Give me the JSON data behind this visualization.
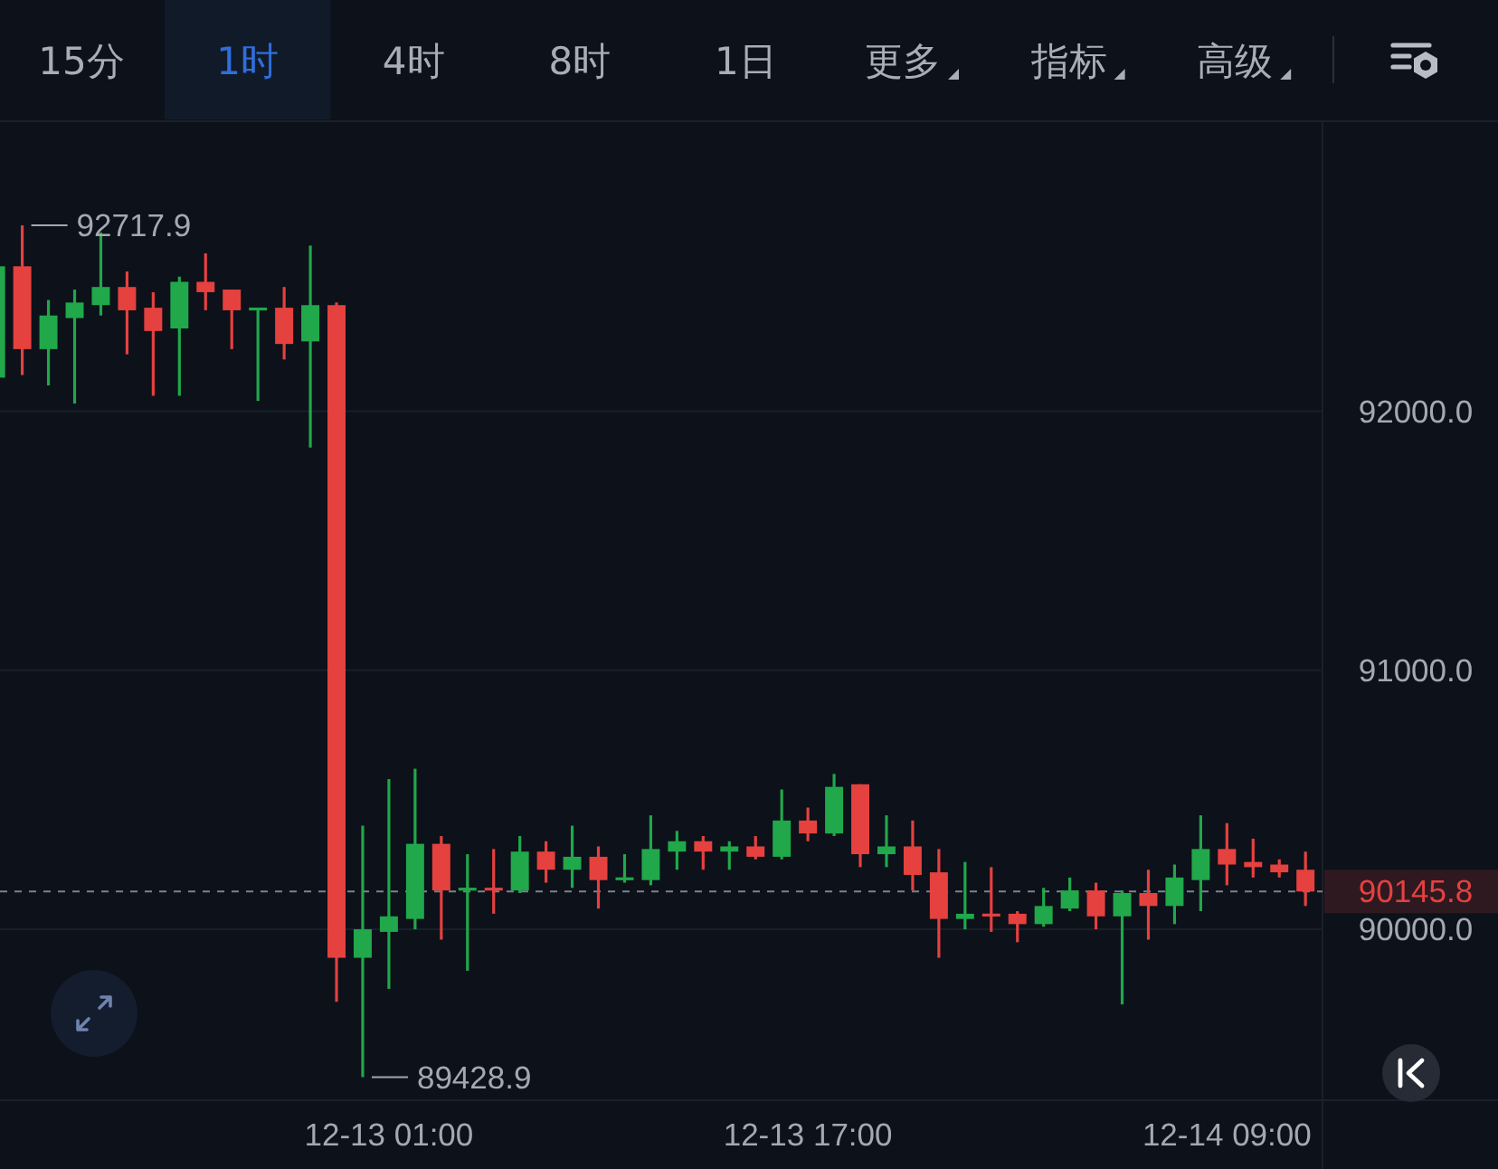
{
  "chart_data": {
    "type": "candlestick",
    "categories": [
      null,
      null,
      null,
      null,
      null,
      null,
      null,
      null,
      null,
      null,
      null,
      null,
      null,
      null,
      null,
      "12-13 01:00",
      null,
      null,
      null,
      null,
      null,
      null,
      null,
      null,
      null,
      null,
      null,
      null,
      null,
      null,
      null,
      "12-13 17:00",
      null,
      null,
      null,
      null,
      null,
      null,
      null,
      null,
      null,
      null,
      null,
      null,
      null,
      null,
      null,
      "12-14 09:00",
      null,
      null,
      null
    ],
    "ohlc": [
      [
        92130,
        92570,
        92120,
        92560
      ],
      [
        92560,
        92717.9,
        92140,
        92240
      ],
      [
        92240,
        92430,
        92100,
        92370
      ],
      [
        92360,
        92470,
        92030,
        92420
      ],
      [
        92410,
        92690,
        92370,
        92480
      ],
      [
        92480,
        92540,
        92220,
        92390
      ],
      [
        92400,
        92460,
        92060,
        92310
      ],
      [
        92320,
        92520,
        92060,
        92500
      ],
      [
        92500,
        92610,
        92390,
        92460
      ],
      [
        92470,
        92470,
        92240,
        92390
      ],
      [
        92390,
        92400,
        92040,
        92400
      ],
      [
        92400,
        92480,
        92200,
        92260
      ],
      [
        92270,
        92640,
        91860,
        92410
      ],
      [
        92410,
        92420,
        89720,
        89890
      ],
      [
        89890,
        90400,
        89428.9,
        90000
      ],
      [
        89990,
        90580,
        89770,
        90050
      ],
      [
        90040,
        90620,
        90000,
        90330
      ],
      [
        90330,
        90360,
        89960,
        90150
      ],
      [
        90150,
        90290,
        89840,
        90160
      ],
      [
        90160,
        90310,
        90060,
        90150
      ],
      [
        90150,
        90360,
        90140,
        90300
      ],
      [
        90300,
        90340,
        90180,
        90230
      ],
      [
        90230,
        90400,
        90160,
        90280
      ],
      [
        90280,
        90320,
        90080,
        90190
      ],
      [
        90190,
        90290,
        90180,
        90200
      ],
      [
        90190,
        90440,
        90170,
        90310
      ],
      [
        90300,
        90380,
        90230,
        90340
      ],
      [
        90340,
        90360,
        90230,
        90300
      ],
      [
        90300,
        90340,
        90230,
        90320
      ],
      [
        90320,
        90360,
        90270,
        90280
      ],
      [
        90280,
        90540,
        90270,
        90420
      ],
      [
        90420,
        90470,
        90340,
        90370
      ],
      [
        90370,
        90600,
        90360,
        90550
      ],
      [
        90560,
        90560,
        90240,
        90290
      ],
      [
        90290,
        90440,
        90240,
        90320
      ],
      [
        90320,
        90420,
        90150,
        90210
      ],
      [
        90220,
        90310,
        89890,
        90040
      ],
      [
        90040,
        90260,
        90000,
        90060
      ],
      [
        90060,
        90240,
        89990,
        90050
      ],
      [
        90060,
        90070,
        89950,
        90020
      ],
      [
        90020,
        90160,
        90010,
        90090
      ],
      [
        90080,
        90200,
        90070,
        90150
      ],
      [
        90150,
        90180,
        90000,
        90050
      ],
      [
        90050,
        90150,
        89710,
        90140
      ],
      [
        90140,
        90230,
        89960,
        90090
      ],
      [
        90090,
        90250,
        90020,
        90200
      ],
      [
        90190,
        90440,
        90070,
        90310
      ],
      [
        90310,
        90410,
        90170,
        90250
      ],
      [
        90260,
        90350,
        90200,
        90240
      ],
      [
        90250,
        90270,
        90200,
        90220
      ],
      [
        90230,
        90300,
        90090,
        90145.8
      ]
    ],
    "colors": [
      "#20a84a",
      "#e5413f",
      "#20a84a",
      "#20a84a",
      "#20a84a",
      "#e5413f",
      "#e5413f",
      "#20a84a",
      "#e5413f",
      "#e5413f",
      "#20a84a",
      "#e5413f",
      "#20a84a",
      "#e5413f",
      "#20a84a",
      "#20a84a",
      "#20a84a",
      "#e5413f",
      "#20a84a",
      "#e5413f",
      "#20a84a",
      "#e5413f",
      "#20a84a",
      "#e5413f",
      "#20a84a",
      "#20a84a",
      "#20a84a",
      "#e5413f",
      "#20a84a",
      "#e5413f",
      "#20a84a",
      "#e5413f",
      "#20a84a",
      "#e5413f",
      "#20a84a",
      "#e5413f",
      "#e5413f",
      "#20a84a",
      "#e5413f",
      "#e5413f",
      "#20a84a",
      "#20a84a",
      "#e5413f",
      "#20a84a",
      "#e5413f",
      "#20a84a",
      "#20a84a",
      "#e5413f",
      "#e5413f",
      "#e5413f",
      "#e5413f"
    ],
    "ylim": [
      89340,
      93120
    ],
    "yticks": [
      {
        "value": 90000,
        "label": "90000.0"
      },
      {
        "value": 91000,
        "label": "91000.0"
      },
      {
        "value": 92000,
        "label": "92000.0"
      }
    ],
    "grid": "y",
    "ref_lines": [
      {
        "axis": "y",
        "value": 90145.8,
        "label": "90145.8",
        "color": "#7d828b",
        "line_style": "dashed"
      }
    ],
    "annotations": [
      "15分",
      "1时",
      "4时",
      "8时",
      "1日",
      "更多",
      "指标",
      "高级",
      "92717.9",
      "89428.9"
    ]
  }
}
